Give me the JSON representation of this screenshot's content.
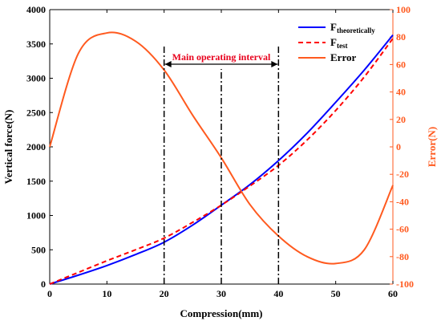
{
  "chart_data": {
    "type": "line",
    "xlabel": "Compression(mm)",
    "ylabel": "Vertical force(N)",
    "y2label": "Error(N)",
    "xlim": [
      0,
      60
    ],
    "ylim": [
      0,
      4000
    ],
    "y2lim": [
      -100,
      100
    ],
    "x_ticks": [
      0,
      10,
      20,
      30,
      40,
      50,
      60
    ],
    "y_ticks": [
      0,
      500,
      1000,
      1500,
      2000,
      2500,
      3000,
      3500,
      4000
    ],
    "y2_ticks": [
      -100,
      -80,
      -60,
      -40,
      -20,
      0,
      20,
      40,
      60,
      80,
      100
    ],
    "grid": false,
    "legend_position": "top-right",
    "x": [
      0,
      5,
      10,
      15,
      20,
      25,
      30,
      35,
      40,
      45,
      50,
      55,
      60
    ],
    "series": [
      {
        "name_main": "F",
        "name_sub": "theoretically",
        "axis": "left",
        "style": "solid",
        "color": "#0000ff",
        "values": [
          0,
          130,
          270,
          430,
          610,
          860,
          1150,
          1450,
          1800,
          2200,
          2650,
          3120,
          3630
        ]
      },
      {
        "name_main": "F",
        "name_sub": "test",
        "axis": "left",
        "style": "dashed",
        "color": "#ff0000",
        "values": [
          0,
          170,
          340,
          500,
          670,
          900,
          1150,
          1430,
          1730,
          2100,
          2530,
          3020,
          3580
        ]
      },
      {
        "name_main": "Error",
        "name_sub": "",
        "axis": "right",
        "style": "solid",
        "color": "#ff5a1f",
        "values": [
          0,
          68,
          83,
          77,
          56,
          23,
          -8,
          -42,
          -65,
          -80,
          -85,
          -75,
          -28
        ]
      }
    ],
    "annotations": {
      "interval_label": "Main operating interval",
      "interval_range": [
        20,
        40
      ],
      "vertical_lines": [
        20,
        30,
        40
      ]
    }
  },
  "colors": {
    "left_axis": "#000000",
    "right_axis": "#ff5a1f",
    "annotation": "#e8001c"
  }
}
